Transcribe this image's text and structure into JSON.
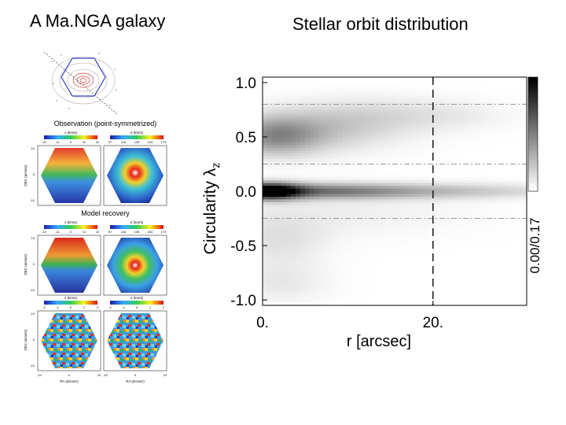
{
  "slide": {
    "left_title": "A Ma.NGA galaxy",
    "right_title": "Stellar orbit distribution"
  },
  "galaxy_panel": {
    "observation_heading": "Observation (point-symmetrized)",
    "model_heading": "Model recovery",
    "velocity_label": "v (km/s)",
    "dispersion_label": "σ (km/s)",
    "obs_v_ticks": [
      "-22",
      "-11",
      "0",
      "11",
      "22"
    ],
    "obs_sigma_ticks": [
      "97",
      "116",
      "135",
      "154",
      "173"
    ],
    "model_v_ticks": [
      "-22",
      "-11",
      "0",
      "11",
      "22"
    ],
    "model_sigma_ticks": [
      "97",
      "116",
      "135",
      "154",
      "173"
    ],
    "resid_v_ticks": [
      "-2",
      "-1",
      "0",
      "1",
      "2"
    ],
    "resid_sigma_ticks": [
      "-2",
      "-1",
      "0",
      "1",
      "2"
    ],
    "y_axis_obs": "DEC (arcsec)",
    "y_axis_model": "DEC (arcsec)",
    "y_axis_resid": "DEC (arcsec)",
    "x_axis": "RA (arcsec)",
    "y_ticks": [
      "10",
      "5",
      "0",
      "-5",
      "-10"
    ],
    "x_ticks": [
      "-10",
      "-5",
      "0",
      "5",
      "10"
    ]
  },
  "chart_data": {
    "type": "heatmap",
    "title": "",
    "xlabel": "r [arcsec]",
    "ylabel": "Circularity λz",
    "xlim": [
      0,
      31
    ],
    "ylim": [
      -1.05,
      1.05
    ],
    "x_ticks": [
      {
        "value": 0,
        "label": "0."
      },
      {
        "value": 20,
        "label": "20."
      }
    ],
    "y_ticks": [
      {
        "value": 1.0,
        "label": "1.0"
      },
      {
        "value": 0.5,
        "label": "0.5"
      },
      {
        "value": 0.0,
        "label": "0.0"
      },
      {
        "value": -0.5,
        "label": "-0.5"
      },
      {
        "value": -1.0,
        "label": "-1.0"
      }
    ],
    "colorbar_label": "0.00/0.17",
    "colorbar_range": [
      0.0,
      0.17
    ],
    "colormap": "white-to-black",
    "vertical_dashed_line_x": 20,
    "horizontal_dashdot_lines_y": [
      0.8,
      0.25,
      -0.25,
      0.8
    ],
    "density_components": [
      {
        "r_center": 0.8,
        "r_width": 2.5,
        "lambda_center": 0.0,
        "lambda_width": 0.05,
        "value": 0.17
      },
      {
        "r_center": 6.0,
        "r_width": 8.0,
        "lambda_center": 0.0,
        "lambda_width": 0.05,
        "value": 0.08
      },
      {
        "r_center": 22.0,
        "r_width": 10.0,
        "lambda_center": 0.0,
        "lambda_width": 0.05,
        "value": 0.035
      },
      {
        "r_center": 1.5,
        "r_width": 3.5,
        "lambda_center": 0.5,
        "lambda_width": 0.12,
        "value": 0.055
      },
      {
        "r_center": 5.0,
        "r_width": 7.0,
        "lambda_center": 0.55,
        "lambda_width": 0.14,
        "value": 0.035
      },
      {
        "r_center": 12.0,
        "r_width": 6.0,
        "lambda_center": 0.7,
        "lambda_width": 0.12,
        "value": 0.02
      },
      {
        "r_center": 22.0,
        "r_width": 5.0,
        "lambda_center": 0.7,
        "lambda_width": 0.1,
        "value": 0.012
      },
      {
        "r_center": 2.0,
        "r_width": 4.0,
        "lambda_center": -0.45,
        "lambda_width": 0.18,
        "value": 0.02
      },
      {
        "r_center": 2.0,
        "r_width": 4.0,
        "lambda_center": -0.85,
        "lambda_width": 0.12,
        "value": 0.015
      },
      {
        "r_center": 10.0,
        "r_width": 10.0,
        "lambda_center": -0.2,
        "lambda_width": 0.15,
        "value": 0.01
      }
    ]
  }
}
